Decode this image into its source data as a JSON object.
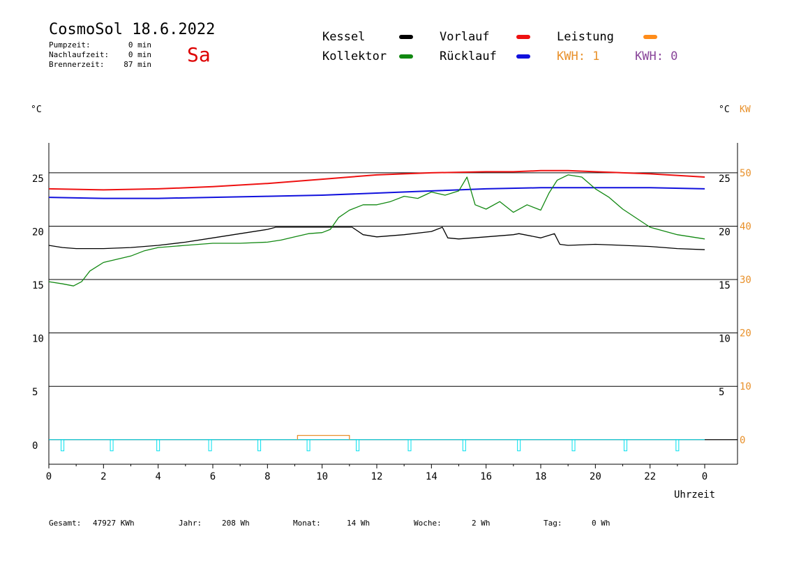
{
  "header": {
    "title": "CosmoSol 18.6.2022",
    "weekday": "Sa",
    "stats": [
      {
        "label": "Pumpzeit:",
        "value": "0 min"
      },
      {
        "label": "Nachlaufzeit:",
        "value": "0 min"
      },
      {
        "label": "Brennerzeit:",
        "value": "87 min"
      }
    ]
  },
  "legend": {
    "items": [
      {
        "label": "Kessel",
        "color": "#000000"
      },
      {
        "label": "Vorlauf",
        "color": "#ee1111"
      },
      {
        "label": "Leistung",
        "color": "#ff8c1a"
      },
      {
        "label": "Kollektor",
        "color": "#118811"
      },
      {
        "label": "Rücklauf",
        "color": "#1111dd"
      }
    ],
    "kwh1": "KWH: 1",
    "kwh2": "KWH: 0",
    "kwh1_color": "#e8902a",
    "kwh2_color": "#884499"
  },
  "axes": {
    "left_unit": "°C",
    "right_unit1": "°C",
    "right_unit2": "KW",
    "xlabel": "Uhrzeit"
  },
  "footer": {
    "items": [
      {
        "label": "Gesamt:",
        "value": "47927 KWh"
      },
      {
        "label": "Jahr:",
        "value": "208 Wh"
      },
      {
        "label": "Monat:",
        "value": "14 Wh"
      },
      {
        "label": "Woche:",
        "value": "2 Wh"
      },
      {
        "label": "Tag:",
        "value": "0 Wh"
      }
    ]
  },
  "chart_data": {
    "type": "line",
    "xlabel": "Uhrzeit",
    "x_ticks": [
      "0",
      "2",
      "4",
      "6",
      "8",
      "10",
      "12",
      "14",
      "16",
      "18",
      "20",
      "22",
      "0"
    ],
    "xlim": [
      0,
      24
    ],
    "y_left_ticks": [
      25,
      20,
      15,
      10,
      5,
      0
    ],
    "y_left_unit": "°C",
    "y_right1_ticks": [
      25,
      20,
      15,
      10,
      5
    ],
    "y_right1_unit": "°C",
    "y_right2_ticks": [
      50,
      40,
      30,
      20,
      10,
      0
    ],
    "y_right2_unit": "KW",
    "ylim": [
      -2.3,
      27.8
    ],
    "grid": "horizontal",
    "series": [
      {
        "name": "Vorlauf",
        "color": "#ee1111",
        "x": [
          0,
          2,
          4,
          6,
          8,
          10,
          11,
          12,
          14,
          16,
          17,
          18,
          19,
          20,
          22,
          24
        ],
        "y": [
          23.5,
          23.4,
          23.5,
          23.7,
          24.0,
          24.4,
          24.6,
          24.8,
          25.0,
          25.1,
          25.1,
          25.2,
          25.2,
          25.1,
          24.9,
          24.6
        ]
      },
      {
        "name": "Rücklauf",
        "color": "#1111dd",
        "x": [
          0,
          2,
          4,
          6,
          8,
          10,
          12,
          14,
          16,
          18,
          20,
          22,
          24
        ],
        "y": [
          22.7,
          22.6,
          22.6,
          22.7,
          22.8,
          22.9,
          23.1,
          23.3,
          23.5,
          23.6,
          23.6,
          23.6,
          23.5
        ]
      },
      {
        "name": "Kessel",
        "color": "#000000",
        "x": [
          0,
          0.5,
          1,
          2,
          3,
          4,
          5,
          6,
          7,
          8,
          8.3,
          11.0,
          11.1,
          11.5,
          12,
          13,
          14,
          14.4,
          14.6,
          15,
          16,
          17,
          17.2,
          18,
          18.5,
          18.7,
          19,
          20,
          21,
          22,
          23,
          24
        ],
        "y": [
          18.2,
          18.0,
          17.9,
          17.9,
          18.0,
          18.2,
          18.5,
          18.9,
          19.3,
          19.7,
          19.9,
          19.9,
          19.9,
          19.2,
          19.0,
          19.2,
          19.5,
          19.9,
          18.9,
          18.8,
          19.0,
          19.2,
          19.3,
          18.9,
          19.3,
          18.3,
          18.2,
          18.3,
          18.2,
          18.1,
          17.9,
          17.8
        ]
      },
      {
        "name": "Kollektor",
        "color": "#118811",
        "x": [
          0,
          0.5,
          0.9,
          1.2,
          1.5,
          2,
          2.5,
          3,
          3.5,
          4,
          5,
          6,
          7,
          8,
          8.5,
          9,
          9.5,
          10,
          10.3,
          10.6,
          11,
          11.5,
          12,
          12.5,
          13,
          13.5,
          14,
          14.5,
          15,
          15.3,
          15.6,
          16,
          16.5,
          17,
          17.5,
          18,
          18.3,
          18.6,
          19,
          19.5,
          20,
          20.5,
          21,
          22,
          23,
          24
        ],
        "y": [
          14.8,
          14.6,
          14.4,
          14.8,
          15.8,
          16.6,
          16.9,
          17.2,
          17.7,
          18.0,
          18.2,
          18.4,
          18.4,
          18.5,
          18.7,
          19.0,
          19.3,
          19.4,
          19.7,
          20.8,
          21.5,
          22.0,
          22.0,
          22.3,
          22.8,
          22.6,
          23.2,
          22.9,
          23.3,
          24.6,
          22.0,
          21.6,
          22.3,
          21.3,
          22.0,
          21.5,
          23.1,
          24.3,
          24.8,
          24.6,
          23.5,
          22.7,
          21.6,
          19.9,
          19.2,
          18.8
        ]
      },
      {
        "name": "Leistung",
        "color": "#e8902a",
        "x": [
          9.1,
          9.1,
          10.9,
          11.0,
          11.0
        ],
        "y": [
          0.0,
          0.4,
          0.4,
          0.4,
          0.0
        ]
      }
    ],
    "pump_pulses_x": [
      0.5,
      2.3,
      4.0,
      5.9,
      7.7,
      9.5,
      11.3,
      13.2,
      15.2,
      17.2,
      19.2,
      21.1,
      23.0
    ],
    "pump_color": "#00e0ee"
  }
}
